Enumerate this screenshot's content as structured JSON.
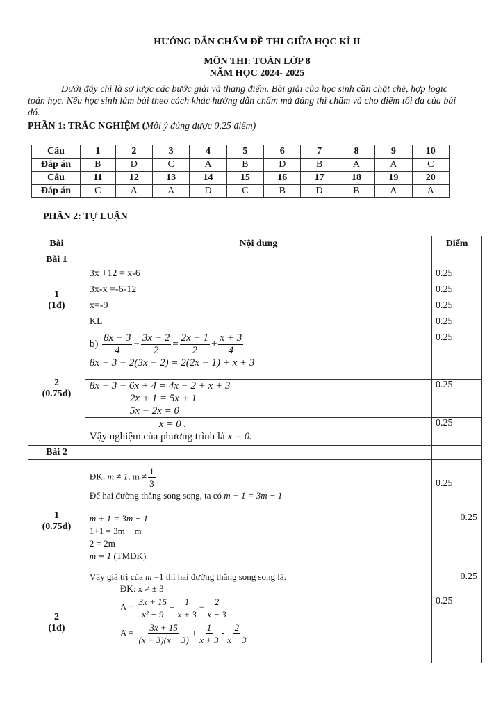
{
  "header": {
    "title": "HƯỚNG DẪN CHẤM ĐỀ THI GIỮA  HỌC KÌ II",
    "subject": "MÔN THI: TOÁN LỚP 8",
    "year": "NĂM HỌC 2024- 2025",
    "note": "Dưới đây chỉ là sơ lược các bước giải và thang điểm. Bài giải của học sinh cần chặt chẽ, hợp logic toán học. Nếu học sinh làm bài theo cách khác hướng dẫn chấm mà đúng thì chấm và cho điểm tối đa của bài đó."
  },
  "part1": {
    "heading": "PHẦN 1: TRẮC NGHIỆM (",
    "heading_note": "Mỗi ý đúng được 0,25 điểm)",
    "row_label_q": "Câu",
    "row_label_a": "Đáp án",
    "questions1": [
      "1",
      "2",
      "3",
      "4",
      "5",
      "6",
      "7",
      "8",
      "9",
      "10"
    ],
    "answers1": [
      "B",
      "D",
      "C",
      "A",
      "B",
      "D",
      "B",
      "A",
      "A",
      "C"
    ],
    "questions2": [
      "11",
      "12",
      "13",
      "14",
      "15",
      "16",
      "17",
      "18",
      "19",
      "20"
    ],
    "answers2": [
      "C",
      "A",
      "A",
      "D",
      "C",
      "B",
      "D",
      "B",
      "A",
      "A"
    ]
  },
  "part2": {
    "heading": "PHẦN 2: TỰ LUẬN",
    "col_bai": "Bài",
    "col_content": "Nội dung",
    "col_score": "Điểm",
    "bai1": "Bài 1",
    "bai2": "Bài 2",
    "b1q1": {
      "label": "1",
      "points": "(1đ)",
      "steps": [
        "3x +12 = x-6",
        "3x-x =-6-12",
        "x=-9",
        "KL"
      ],
      "scores": [
        "0.25",
        "0.25",
        "0.25",
        "0.25"
      ]
    },
    "b1q2": {
      "label": "2",
      "points": "(0.75đ)",
      "b": "b)",
      "f1n": "8x − 3",
      "f1d": "4",
      "op1": "−",
      "f2n": "3x − 2",
      "f2d": "2",
      "eq": "=",
      "f3n": "2x − 1",
      "f3d": "2",
      "op2": "+",
      "f4n": "x + 3",
      "f4d": "4",
      "l2": "8x − 3 − 2(3x − 2) = 2(2x − 1) + x + 3",
      "l3": "8x − 3 − 6x + 4 = 4x − 2 + x + 3",
      "l4": "2x + 1 = 5x + 1",
      "l5": "5x − 2x = 0",
      "l6": "x = 0 .",
      "l7a": "Vậy nghiệm của phương trình là ",
      "l7b": "x = 0.",
      "scores": [
        "0.25",
        "0.25",
        "0.25"
      ]
    },
    "b2q1": {
      "label": "1",
      "points": "(0.75đ)",
      "dk": "ĐK: ",
      "dk_m": "m ≠ 1,",
      "dk_m2": " m ≠",
      "dk_n": "1",
      "dk_d": "3",
      "cond": "Để hai đường thẳng song song, ta có ",
      "cond_m": "m + 1 = 3m − 1",
      "steps": [
        "m + 1 = 3m − 1",
        "1+1 = 3m − m",
        "2 = 2m",
        "m = 1"
      ],
      "tm": " (TMĐK)",
      "concl_a": "Vậy giá trị của ",
      "concl_m": "m",
      "concl_b": " =1 thì hai đường thẳng song song là.",
      "scores": [
        "0.25",
        "0.25",
        "0.25"
      ]
    },
    "b2q2": {
      "label": "2",
      "points": "(1đ)",
      "dk": "ĐK:  x ≠ ±  3",
      "A": "A =",
      "a1n": "3x + 15",
      "a1d": "x² − 9",
      "op1": "+",
      "a2n": "1",
      "a2d": "x + 3",
      "op2": "−",
      "a3n": "2",
      "a3d": "x − 3",
      "b1n": "3x + 15",
      "b1d": "(x + 3)(x − 3)",
      "bop1": "+",
      "b2n": "1",
      "b2d": "x + 3",
      "bop2": "-",
      "b3n": "2",
      "b3d": "x − 3",
      "score": "0.25"
    }
  }
}
